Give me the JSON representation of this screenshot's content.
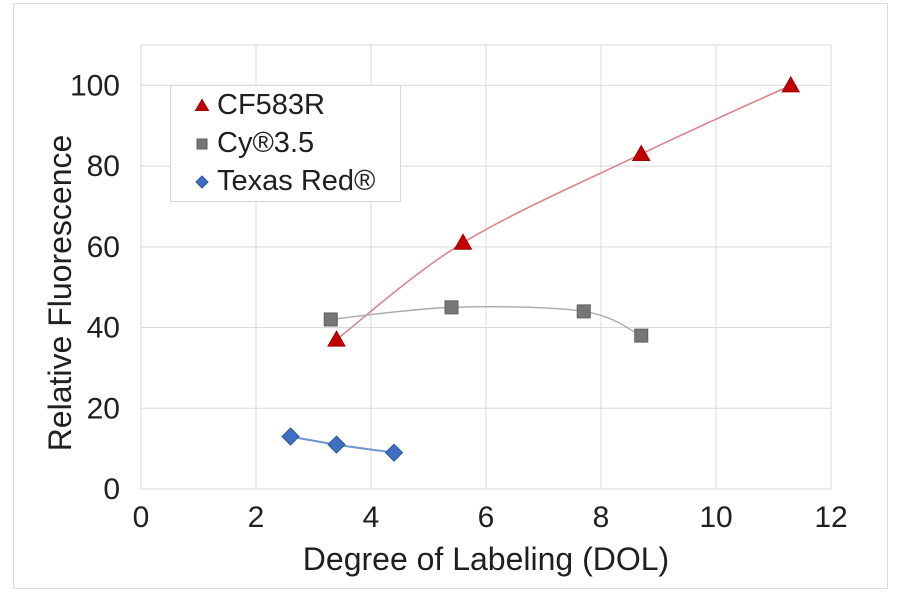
{
  "chart_data": {
    "type": "scatter",
    "title": "",
    "xlabel": "Degree of Labeling (DOL)",
    "ylabel": "Relative Fluorescence",
    "xlim": [
      0,
      12
    ],
    "ylim": [
      0,
      110
    ],
    "xticks": [
      0,
      2,
      4,
      6,
      8,
      10,
      12
    ],
    "yticks": [
      0,
      20,
      40,
      60,
      80,
      100
    ],
    "grid": true,
    "legend_position": "inside-top-left",
    "series": [
      {
        "name": "CF583R",
        "marker": "triangle",
        "marker_color": "#C00000",
        "marker_stroke": "#A00000",
        "line_color": "#D9858D",
        "line_width": 1.6,
        "points": [
          [
            3.4,
            37
          ],
          [
            5.6,
            61
          ],
          [
            8.7,
            83
          ],
          [
            11.3,
            100
          ]
        ]
      },
      {
        "name": "Cy®3.5",
        "marker": "square",
        "marker_color": "#767676",
        "marker_stroke": "#5F5F5F",
        "line_color": "#ABABAB",
        "line_width": 1.4,
        "points": [
          [
            3.3,
            42
          ],
          [
            5.4,
            45
          ],
          [
            7.7,
            44
          ],
          [
            8.7,
            38
          ]
        ]
      },
      {
        "name": "Texas Red®",
        "marker": "diamond",
        "marker_color": "#3E6FC4",
        "marker_stroke": "#2F5597",
        "line_color": "#6E94CE",
        "line_width": 2,
        "points": [
          [
            2.6,
            13
          ],
          [
            3.4,
            11
          ],
          [
            4.4,
            9
          ]
        ]
      }
    ],
    "colors": {
      "grid": "#D9D9D9",
      "plot_border": "#D9D9D9",
      "text": "#1F1F1F",
      "frame_border": "#DCDCDC",
      "background": "#FFFFFF"
    }
  }
}
